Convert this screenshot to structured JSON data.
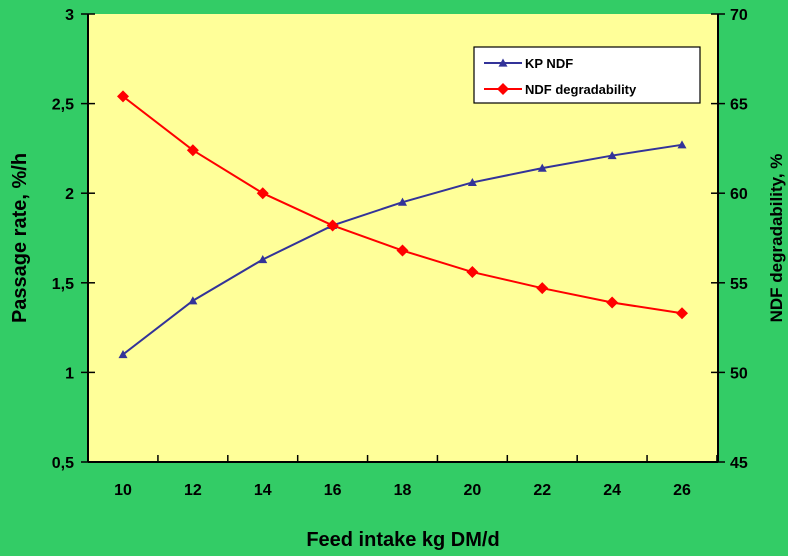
{
  "colors": {
    "background": "#33cc66",
    "plot_area": "#ffff99",
    "series_kp": "#333399",
    "series_ndf": "#ff0000",
    "axis": "#000000"
  },
  "chart_data": {
    "type": "line",
    "x": [
      10,
      12,
      14,
      16,
      18,
      20,
      22,
      24,
      26
    ],
    "xticks": [
      "10",
      "12",
      "14",
      "16",
      "18",
      "20",
      "22",
      "24",
      "26"
    ],
    "xlabel": "Feed intake kg DM/d",
    "ylabel_left": "Passage rate, %/h",
    "ylabel_right": "NDF degradability, %",
    "ylim_left": [
      0.5,
      3
    ],
    "ylim_right": [
      45,
      70
    ],
    "yticks_left": [
      "0,5",
      "1",
      "1,5",
      "2",
      "2,5",
      "3"
    ],
    "yticks_right": [
      "45",
      "50",
      "55",
      "60",
      "65",
      "70"
    ],
    "grid": false,
    "legend_position": "top-right",
    "series": [
      {
        "name": "KP NDF",
        "axis": "left",
        "marker": "triangle",
        "values": [
          1.1,
          1.4,
          1.63,
          1.82,
          1.95,
          2.06,
          2.14,
          2.21,
          2.27
        ]
      },
      {
        "name": "NDF degradability",
        "axis": "right",
        "marker": "diamond",
        "values": [
          65.4,
          62.4,
          60.0,
          58.2,
          56.8,
          55.6,
          54.7,
          53.9,
          53.3
        ]
      }
    ]
  }
}
